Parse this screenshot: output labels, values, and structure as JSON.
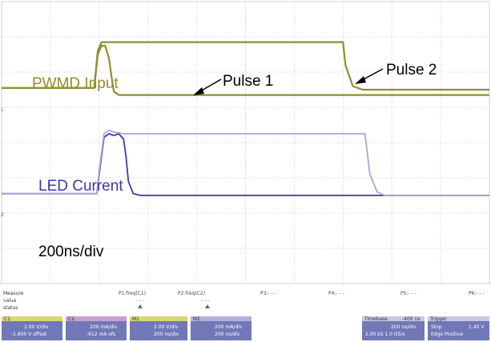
{
  "chart_data": {
    "type": "line",
    "title": "",
    "xlabel": "",
    "ylabel": "",
    "time_base_label": "200ns/div",
    "grid": true,
    "grid_divisions": {
      "x": 10,
      "y": 8
    },
    "xlim": [
      0,
      10
    ],
    "ylim": [
      0,
      8
    ],
    "series": [
      {
        "name": "PWMD Input",
        "color": "#8f8f2c",
        "annotation": "Pulse 1",
        "x": [
          0,
          1.9,
          1.97,
          2.05,
          2.12,
          2.2,
          2.25,
          2.3,
          2.4,
          10
        ],
        "y": [
          5.55,
          5.55,
          6.5,
          6.75,
          6.75,
          6.4,
          5.9,
          5.45,
          5.35,
          5.35
        ]
      },
      {
        "name": "",
        "color": "#8f8f2c",
        "annotation": "Pulse 2",
        "x": [
          0,
          1.9,
          1.97,
          2.05,
          7.0,
          7.05,
          7.2,
          7.4,
          10
        ],
        "y": [
          5.55,
          5.55,
          6.6,
          6.85,
          6.85,
          6.2,
          5.6,
          5.5,
          5.5
        ]
      },
      {
        "name": "LED Current",
        "color": "#3a3aa8",
        "x": [
          0,
          1.95,
          2.0,
          2.1,
          2.2,
          2.3,
          2.4,
          2.5,
          2.55,
          2.6,
          2.7,
          2.85,
          10
        ],
        "y": [
          2.55,
          2.55,
          3.1,
          4.15,
          4.25,
          4.2,
          4.25,
          4.1,
          3.6,
          2.9,
          2.55,
          2.5,
          2.5
        ]
      },
      {
        "name": "",
        "color": "#a8a8d8",
        "x": [
          0,
          1.95,
          2.0,
          2.1,
          2.2,
          2.3,
          2.5,
          7.45,
          7.55,
          7.7,
          7.85,
          10
        ],
        "y": [
          2.55,
          2.55,
          3.2,
          4.25,
          4.35,
          4.3,
          4.25,
          4.25,
          3.1,
          2.6,
          2.5,
          2.5
        ]
      }
    ]
  },
  "labels": {
    "pwmd": "PWMD Input",
    "led": "LED Current",
    "pulse1": "Pulse 1",
    "pulse2": "Pulse 2",
    "timebase": "200ns/div"
  },
  "status_bar": {
    "row_labels": [
      "Measure",
      "value",
      "status"
    ],
    "measurements": [
      "P1:freq(C1)",
      "P2:freq(C2)",
      "P3:- - -",
      "P4:- - -",
      "P5:- - -",
      "P6:- - -"
    ],
    "values": [
      "- - -",
      "- - -"
    ],
    "channels": [
      {
        "name": "C1",
        "scale": "2.00 V/div",
        "offset": "-1.800 V offset",
        "color": "#d8d870"
      },
      {
        "name": "C2",
        "scale": "200 mA/div",
        "offset": "-612 mA ofs",
        "color": "#c8a0d0"
      },
      {
        "name": "M1",
        "scale": "2.00 V/div",
        "offset": "200 ns/div",
        "color": "#d8d870"
      },
      {
        "name": "M2",
        "scale": "200 mA/div",
        "offset": "200 ns/div",
        "color": "#b0b0e0"
      }
    ],
    "timebase": {
      "name": "Timebase",
      "value": "-400 ns",
      "line1": "200 ns/div",
      "line2": "2.00 kS  1.0 GS/s"
    },
    "trigger": {
      "name": "Trigger",
      "state": "Stop",
      "value": "1.40 V",
      "line2": "Edge  Positive"
    }
  }
}
